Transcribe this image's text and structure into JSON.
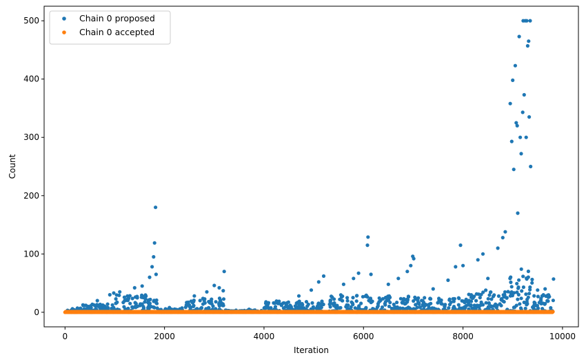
{
  "chart_data": {
    "type": "scatter",
    "xlabel": "Iteration",
    "ylabel": "Count",
    "xlim": [
      -420,
      10320
    ],
    "ylim": [
      -25,
      525
    ],
    "x_ticks": [
      0,
      2000,
      4000,
      6000,
      8000,
      10000
    ],
    "y_ticks": [
      0,
      100,
      200,
      300,
      400,
      500
    ],
    "legend_position": "top-left",
    "series": [
      {
        "name": "Chain 0 proposed",
        "color": "#1f77b4",
        "segments": [
          {
            "x_start": 0,
            "x_end": 300,
            "base_max": 4,
            "outliers": [
              [
                150,
                6
              ],
              [
                250,
                7
              ]
            ]
          },
          {
            "x_start": 300,
            "x_end": 1000,
            "base_max": 14,
            "outliers": [
              [
                650,
                20
              ],
              [
                900,
                30
              ],
              [
                980,
                33
              ]
            ]
          },
          {
            "x_start": 1000,
            "x_end": 1860,
            "base_max": 30,
            "outliers": [
              [
                1100,
                35
              ],
              [
                1400,
                42
              ],
              [
                1550,
                45
              ],
              [
                1700,
                60
              ],
              [
                1750,
                78
              ],
              [
                1780,
                95
              ],
              [
                1800,
                119
              ],
              [
                1820,
                180
              ],
              [
                1830,
                65
              ]
            ]
          },
          {
            "x_start": 1860,
            "x_end": 2350,
            "base_max": 6,
            "outliers": [
              [
                2100,
                8
              ]
            ]
          },
          {
            "x_start": 2350,
            "x_end": 3200,
            "base_max": 24,
            "outliers": [
              [
                2600,
                28
              ],
              [
                2850,
                35
              ],
              [
                3000,
                46
              ],
              [
                3100,
                42
              ],
              [
                3180,
                37
              ],
              [
                3200,
                70
              ]
            ]
          },
          {
            "x_start": 3200,
            "x_end": 4000,
            "base_max": 4,
            "outliers": [
              [
                3700,
                5
              ]
            ]
          },
          {
            "x_start": 4000,
            "x_end": 5200,
            "base_max": 20,
            "outliers": [
              [
                4400,
                16
              ],
              [
                4700,
                28
              ],
              [
                4950,
                38
              ],
              [
                5100,
                52
              ],
              [
                5200,
                62
              ]
            ]
          },
          {
            "x_start": 5300,
            "x_end": 6200,
            "base_max": 30,
            "outliers": [
              [
                5600,
                48
              ],
              [
                5800,
                58
              ],
              [
                5900,
                67
              ],
              [
                6080,
                115
              ],
              [
                6090,
                129
              ],
              [
                6150,
                65
              ]
            ]
          },
          {
            "x_start": 6200,
            "x_end": 7050,
            "base_max": 32,
            "outliers": [
              [
                6500,
                48
              ],
              [
                6700,
                58
              ],
              [
                6880,
                70
              ],
              [
                6950,
                80
              ],
              [
                6990,
                96
              ],
              [
                7010,
                92
              ]
            ]
          },
          {
            "x_start": 7050,
            "x_end": 8100,
            "base_max": 25,
            "outliers": [
              [
                7400,
                40
              ],
              [
                7700,
                55
              ],
              [
                7850,
                78
              ],
              [
                7950,
                115
              ],
              [
                8000,
                80
              ]
            ]
          },
          {
            "x_start": 8100,
            "x_end": 8900,
            "base_max": 38,
            "outliers": [
              [
                8300,
                90
              ],
              [
                8400,
                100
              ],
              [
                8500,
                58
              ],
              [
                8700,
                110
              ],
              [
                8800,
                128
              ],
              [
                8850,
                138
              ]
            ]
          },
          {
            "x_start": 8900,
            "x_end": 9400,
            "base_max": 75,
            "outliers": [
              [
                8950,
                358
              ],
              [
                8980,
                293
              ],
              [
                9000,
                398
              ],
              [
                9020,
                245
              ],
              [
                9050,
                423
              ],
              [
                9070,
                325
              ],
              [
                9090,
                320
              ],
              [
                9100,
                170
              ],
              [
                9130,
                473
              ],
              [
                9150,
                300
              ],
              [
                9170,
                272
              ],
              [
                9200,
                343
              ],
              [
                9210,
                500
              ],
              [
                9230,
                373
              ],
              [
                9250,
                500
              ],
              [
                9270,
                300
              ],
              [
                9280,
                500
              ],
              [
                9300,
                457
              ],
              [
                9320,
                465
              ],
              [
                9330,
                335
              ],
              [
                9350,
                500
              ],
              [
                9360,
                250
              ]
            ]
          },
          {
            "x_start": 9400,
            "x_end": 9820,
            "base_max": 30,
            "outliers": [
              [
                9500,
                38
              ],
              [
                9650,
                40
              ],
              [
                9820,
                57
              ]
            ]
          }
        ]
      },
      {
        "name": "Chain 0 accepted",
        "color": "#ff7f0e",
        "x_start": 0,
        "x_end": 9820,
        "y_values": [
          0,
          1
        ]
      }
    ]
  }
}
